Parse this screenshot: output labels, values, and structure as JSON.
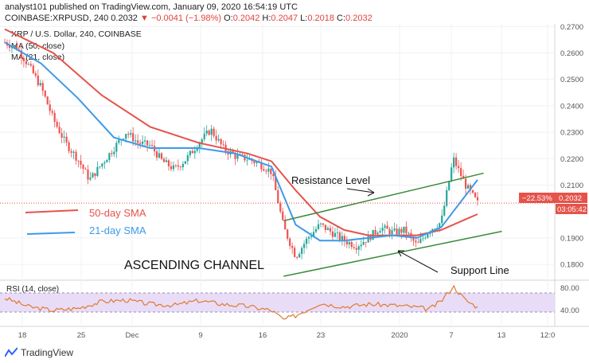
{
  "header": {
    "publisher_line": "analyst101 published on TradingView.com, January 09, 2020 16:54:19 UTC",
    "symbol": "COINBASE:XRPUSD, 240",
    "last": "0.2032",
    "change": "▼ −0.0041 (−1.98%)",
    "o_label": "O:",
    "o_value": "0.2042",
    "h_label": "H:",
    "h_value": "0.2047",
    "l_label": "L:",
    "l_value": "0.2018",
    "c_label": "C:",
    "c_value": "0.2032"
  },
  "legend": {
    "title": "XRP / U.S. Dollar, 240, COINBASE",
    "ma50": "MA (50, close)",
    "ma21": "MA (21, close)"
  },
  "annotations": {
    "resistance": "Resistance Level",
    "support": "Support Line",
    "channel": "ASCENDING CHANNEL",
    "sma50": "50-day SMA",
    "sma21": "21-day SMA"
  },
  "price_tags": {
    "pct": "−22.53%",
    "price": "0.2032",
    "countdown": "03:05:42"
  },
  "rsi": {
    "label": "RSI (14, close)",
    "ticks": [
      "80.00",
      "40.00"
    ]
  },
  "footer": {
    "brand": "TradingView"
  },
  "colors": {
    "candle_up": "#26a69a",
    "candle_down": "#ef5350",
    "ma50": "#e5534b",
    "ma21": "#3d9ae8",
    "channel": "#3a8a3a",
    "rsi_line": "#e07a2f",
    "rsi_band": "#e9dcf7"
  },
  "chart_data": {
    "type": "candlestick",
    "y_axis_ticks": [
      "0.2700",
      "0.2600",
      "0.2500",
      "0.2400",
      "0.2300",
      "0.2200",
      "0.2100",
      "0.1900",
      "0.1800"
    ],
    "ylim": [
      0.174,
      0.271
    ],
    "x_axis_ticks": [
      "18",
      "25",
      "Dec",
      "9",
      "16",
      "23",
      "2020",
      "7",
      "13",
      "12:0"
    ],
    "price_path": [
      [
        0,
        0.264
      ],
      [
        1,
        0.262
      ],
      [
        2,
        0.255
      ],
      [
        3,
        0.247
      ],
      [
        4,
        0.235
      ],
      [
        5,
        0.226
      ],
      [
        6,
        0.22
      ],
      [
        7,
        0.212
      ],
      [
        8,
        0.218
      ],
      [
        9,
        0.224
      ],
      [
        10,
        0.23
      ],
      [
        11,
        0.226
      ],
      [
        12,
        0.225
      ],
      [
        13,
        0.219
      ],
      [
        14,
        0.216
      ],
      [
        15,
        0.22
      ],
      [
        16,
        0.226
      ],
      [
        17,
        0.231
      ],
      [
        18,
        0.224
      ],
      [
        19,
        0.221
      ],
      [
        20,
        0.22
      ],
      [
        21,
        0.218
      ],
      [
        22,
        0.215
      ],
      [
        23,
        0.194
      ],
      [
        24,
        0.183
      ],
      [
        25,
        0.19
      ],
      [
        26,
        0.195
      ],
      [
        27,
        0.192
      ],
      [
        28,
        0.189
      ],
      [
        29,
        0.187
      ],
      [
        30,
        0.19
      ],
      [
        31,
        0.194
      ],
      [
        32,
        0.192
      ],
      [
        33,
        0.193
      ],
      [
        34,
        0.187
      ],
      [
        35,
        0.193
      ],
      [
        36,
        0.196
      ],
      [
        37,
        0.22
      ],
      [
        38,
        0.21
      ],
      [
        39,
        0.2032
      ]
    ],
    "ma50_path": [
      [
        0,
        0.269
      ],
      [
        4,
        0.26
      ],
      [
        8,
        0.244
      ],
      [
        12,
        0.232
      ],
      [
        16,
        0.226
      ],
      [
        20,
        0.222
      ],
      [
        22,
        0.219
      ],
      [
        24,
        0.208
      ],
      [
        26,
        0.198
      ],
      [
        28,
        0.193
      ],
      [
        30,
        0.191
      ],
      [
        32,
        0.191
      ],
      [
        34,
        0.191
      ],
      [
        36,
        0.193
      ],
      [
        38,
        0.197
      ],
      [
        39,
        0.199
      ]
    ],
    "ma21_path": [
      [
        0,
        0.264
      ],
      [
        3,
        0.256
      ],
      [
        6,
        0.243
      ],
      [
        9,
        0.228
      ],
      [
        12,
        0.224
      ],
      [
        16,
        0.224
      ],
      [
        19,
        0.222
      ],
      [
        22,
        0.217
      ],
      [
        24,
        0.195
      ],
      [
        26,
        0.189
      ],
      [
        28,
        0.189
      ],
      [
        30,
        0.19
      ],
      [
        32,
        0.191
      ],
      [
        34,
        0.19
      ],
      [
        36,
        0.194
      ],
      [
        37,
        0.2
      ],
      [
        39,
        0.212
      ]
    ],
    "resistance_line": [
      [
        23,
        0.1965
      ],
      [
        39.5,
        0.2145
      ]
    ],
    "support_line": [
      [
        23,
        0.1755
      ],
      [
        41,
        0.1925
      ]
    ],
    "rsi_path": [
      [
        0,
        62
      ],
      [
        2,
        45
      ],
      [
        4,
        38
      ],
      [
        6,
        42
      ],
      [
        8,
        55
      ],
      [
        10,
        58
      ],
      [
        12,
        50
      ],
      [
        14,
        48
      ],
      [
        16,
        57
      ],
      [
        18,
        50
      ],
      [
        20,
        46
      ],
      [
        22,
        38
      ],
      [
        23,
        20
      ],
      [
        24,
        28
      ],
      [
        26,
        52
      ],
      [
        28,
        45
      ],
      [
        30,
        50
      ],
      [
        32,
        48
      ],
      [
        34,
        44
      ],
      [
        35,
        40
      ],
      [
        36,
        56
      ],
      [
        37,
        85
      ],
      [
        38,
        58
      ],
      [
        39,
        44
      ]
    ],
    "rsi_ylim": [
      10,
      95
    ]
  }
}
